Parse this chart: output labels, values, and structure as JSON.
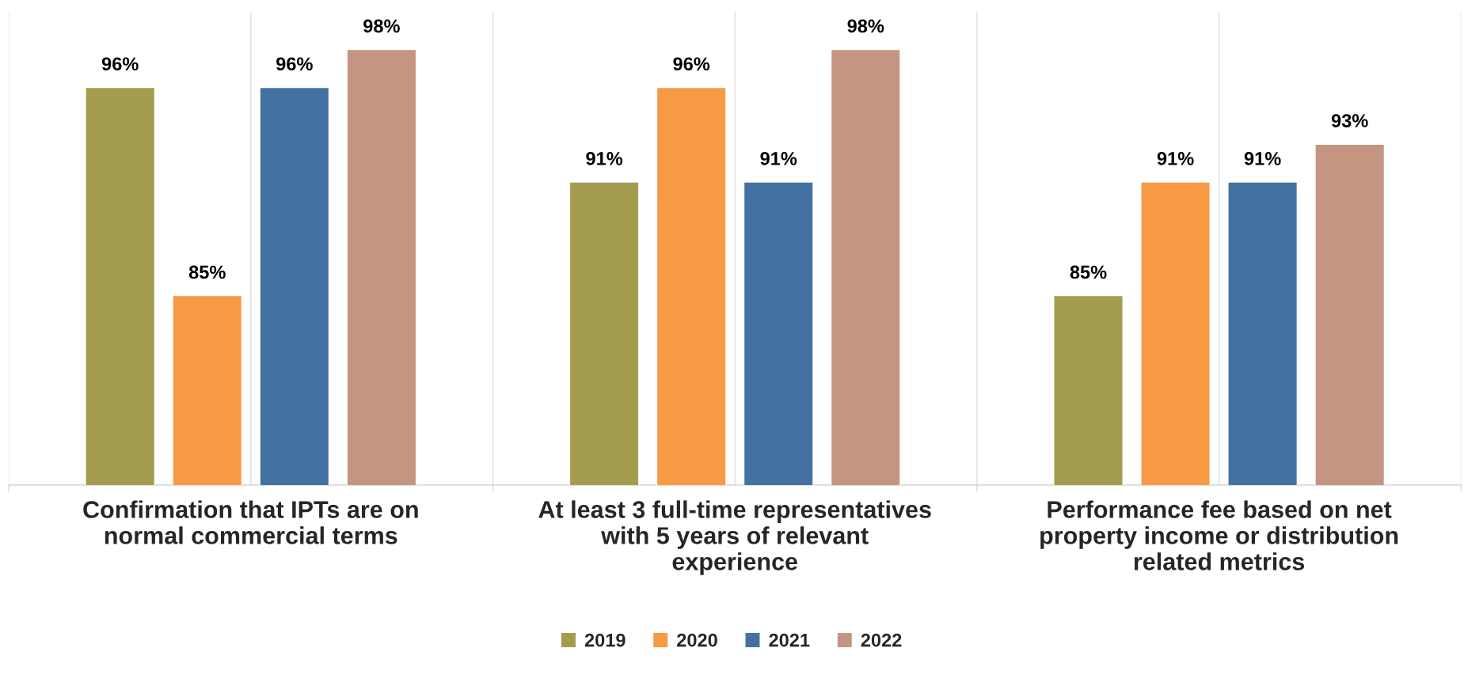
{
  "chart_data": {
    "type": "bar",
    "categories": [
      "Confirmation that IPTs are on\nnormal commercial terms",
      "At least 3 full-time representatives\nwith 5 years of relevant\nexperience",
      "Performance fee based on net\nproperty income or distribution\nrelated metrics"
    ],
    "series": [
      {
        "name": "2019",
        "color": "#a39c4f",
        "values": [
          96,
          91,
          85
        ],
        "value_labels": [
          "96%",
          "91%",
          "85%"
        ]
      },
      {
        "name": "2020",
        "color": "#f79a43",
        "values": [
          85,
          96,
          91
        ],
        "value_labels": [
          "85%",
          "96%",
          "91%"
        ]
      },
      {
        "name": "2021",
        "color": "#4372a2",
        "values": [
          96,
          91,
          91
        ],
        "value_labels": [
          "96%",
          "91%",
          "91%"
        ]
      },
      {
        "name": "2022",
        "color": "#c49581",
        "values": [
          98,
          98,
          93
        ],
        "value_labels": [
          "98%",
          "98%",
          "93%"
        ]
      }
    ],
    "ylim": [
      75,
      100
    ],
    "tick_labels": "x",
    "grid": "x",
    "legend": "bottom"
  }
}
